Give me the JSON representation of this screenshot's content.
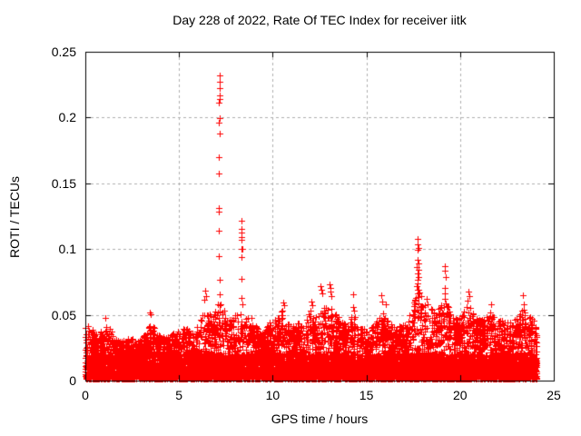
{
  "page": {
    "background": "#ffffff"
  },
  "chart_data": {
    "type": "scatter",
    "title": "Day 228 of 2022, Rate Of TEC Index for receiver iitk",
    "xlabel": "GPS time / hours",
    "ylabel": "ROTI / TECUs",
    "xlim": [
      0,
      25
    ],
    "ylim": [
      0,
      0.25
    ],
    "x_ticks": [
      0,
      5,
      10,
      15,
      20,
      25
    ],
    "x_tick_labels": [
      "0",
      "5",
      "10",
      "15",
      "20",
      "25"
    ],
    "y_ticks": [
      0,
      0.05,
      0.1,
      0.15,
      0.2,
      0.25
    ],
    "y_tick_labels": [
      "0",
      "0.05",
      "0.1",
      "0.15",
      "0.2",
      "0.25"
    ],
    "grid": true,
    "grid_style": "dashed",
    "grid_color": "#b0b0b0",
    "axis_color": "#000000",
    "marker": "+",
    "marker_color": "#ff0000",
    "legend": "none",
    "series": {
      "name": "ROTI",
      "coverage_hours": [
        0,
        24.1
      ],
      "dense_band_tecu": [
        0.001,
        0.03
      ],
      "envelope": [
        [
          0.0,
          0.044
        ],
        [
          0.3,
          0.04
        ],
        [
          0.7,
          0.034
        ],
        [
          1.0,
          0.042
        ],
        [
          1.3,
          0.04
        ],
        [
          1.6,
          0.032
        ],
        [
          2.0,
          0.03
        ],
        [
          2.4,
          0.033
        ],
        [
          2.8,
          0.03
        ],
        [
          3.2,
          0.036
        ],
        [
          3.5,
          0.048
        ],
        [
          3.8,
          0.036
        ],
        [
          4.2,
          0.033
        ],
        [
          4.6,
          0.036
        ],
        [
          5.0,
          0.038
        ],
        [
          5.4,
          0.04
        ],
        [
          5.8,
          0.036
        ],
        [
          6.1,
          0.046
        ],
        [
          6.4,
          0.058
        ],
        [
          6.7,
          0.05
        ],
        [
          7.0,
          0.056
        ],
        [
          7.2,
          0.062
        ],
        [
          7.45,
          0.056
        ],
        [
          7.7,
          0.048
        ],
        [
          8.0,
          0.05
        ],
        [
          8.3,
          0.058
        ],
        [
          8.6,
          0.052
        ],
        [
          8.9,
          0.048
        ],
        [
          9.2,
          0.04
        ],
        [
          9.5,
          0.036
        ],
        [
          9.8,
          0.044
        ],
        [
          10.1,
          0.046
        ],
        [
          10.5,
          0.056
        ],
        [
          10.8,
          0.044
        ],
        [
          11.1,
          0.042
        ],
        [
          11.4,
          0.046
        ],
        [
          11.7,
          0.044
        ],
        [
          12.0,
          0.054
        ],
        [
          12.3,
          0.048
        ],
        [
          12.6,
          0.06
        ],
        [
          12.9,
          0.054
        ],
        [
          13.1,
          0.06
        ],
        [
          13.4,
          0.052
        ],
        [
          13.7,
          0.046
        ],
        [
          14.0,
          0.044
        ],
        [
          14.3,
          0.054
        ],
        [
          14.6,
          0.04
        ],
        [
          15.0,
          0.04
        ],
        [
          15.4,
          0.044
        ],
        [
          15.8,
          0.054
        ],
        [
          16.1,
          0.048
        ],
        [
          16.4,
          0.042
        ],
        [
          16.7,
          0.04
        ],
        [
          17.0,
          0.046
        ],
        [
          17.3,
          0.052
        ],
        [
          17.6,
          0.062
        ],
        [
          17.8,
          0.072
        ],
        [
          18.0,
          0.064
        ],
        [
          18.3,
          0.058
        ],
        [
          18.6,
          0.052
        ],
        [
          18.9,
          0.056
        ],
        [
          19.2,
          0.062
        ],
        [
          19.5,
          0.054
        ],
        [
          19.8,
          0.05
        ],
        [
          20.1,
          0.052
        ],
        [
          20.4,
          0.058
        ],
        [
          20.7,
          0.052
        ],
        [
          21.0,
          0.046
        ],
        [
          21.3,
          0.048
        ],
        [
          21.6,
          0.054
        ],
        [
          21.9,
          0.046
        ],
        [
          22.2,
          0.046
        ],
        [
          22.5,
          0.05
        ],
        [
          22.8,
          0.046
        ],
        [
          23.1,
          0.048
        ],
        [
          23.4,
          0.056
        ],
        [
          23.7,
          0.05
        ],
        [
          24.0,
          0.048
        ],
        [
          24.1,
          0.038
        ]
      ],
      "spike_points": [
        [
          7.15,
          0.2318
        ],
        [
          7.16,
          0.2272
        ],
        [
          7.15,
          0.2226
        ],
        [
          7.17,
          0.2169
        ],
        [
          7.15,
          0.2141
        ],
        [
          7.13,
          0.2115
        ],
        [
          7.15,
          0.1996
        ],
        [
          7.13,
          0.196
        ],
        [
          7.18,
          0.188
        ],
        [
          7.14,
          0.1696
        ],
        [
          7.14,
          0.1574
        ],
        [
          7.14,
          0.131
        ],
        [
          7.14,
          0.1287
        ],
        [
          7.13,
          0.114
        ],
        [
          7.13,
          0.0948
        ],
        [
          7.15,
          0.0769
        ],
        [
          7.15,
          0.0654
        ],
        [
          8.33,
          0.1213
        ],
        [
          8.33,
          0.1155
        ],
        [
          8.34,
          0.1126
        ],
        [
          8.33,
          0.1093
        ],
        [
          8.34,
          0.1068
        ],
        [
          8.36,
          0.1001
        ],
        [
          8.31,
          0.1001
        ],
        [
          8.33,
          0.0937
        ],
        [
          8.31,
          0.0776
        ],
        [
          8.35,
          0.0626
        ],
        [
          8.37,
          0.058
        ],
        [
          17.75,
          0.108
        ],
        [
          17.73,
          0.1035
        ],
        [
          17.77,
          0.101
        ],
        [
          17.75,
          0.0995
        ],
        [
          17.72,
          0.092
        ],
        [
          17.78,
          0.089
        ],
        [
          17.7,
          0.0865
        ],
        [
          17.76,
          0.084
        ],
        [
          17.73,
          0.0815
        ],
        [
          17.79,
          0.079
        ],
        [
          17.71,
          0.0765
        ],
        [
          17.75,
          0.074
        ],
        [
          17.68,
          0.0715
        ],
        [
          17.8,
          0.069
        ],
        [
          17.73,
          0.066
        ],
        [
          17.77,
          0.0635
        ],
        [
          19.2,
          0.0868
        ],
        [
          19.18,
          0.0833
        ],
        [
          19.22,
          0.0787
        ],
        [
          19.19,
          0.0706
        ],
        [
          19.21,
          0.0661
        ],
        [
          19.2,
          0.0625
        ],
        [
          19.23,
          0.059
        ],
        [
          1.08,
          0.0477
        ],
        [
          3.45,
          0.052
        ],
        [
          3.5,
          0.0505
        ],
        [
          6.4,
          0.0684
        ],
        [
          6.45,
          0.064
        ],
        [
          6.35,
          0.0615
        ],
        [
          10.55,
          0.0596
        ],
        [
          10.6,
          0.057
        ],
        [
          12.05,
          0.06
        ],
        [
          12.1,
          0.0575
        ],
        [
          12.55,
          0.0718
        ],
        [
          12.6,
          0.069
        ],
        [
          12.65,
          0.066
        ],
        [
          13.05,
          0.073
        ],
        [
          13.1,
          0.0705
        ],
        [
          13.08,
          0.0675
        ],
        [
          13.15,
          0.0645
        ],
        [
          14.28,
          0.0654
        ],
        [
          14.3,
          0.056
        ],
        [
          14.33,
          0.0535
        ],
        [
          15.78,
          0.0649
        ],
        [
          15.82,
          0.06
        ],
        [
          16.05,
          0.058
        ],
        [
          18.2,
          0.062
        ],
        [
          18.25,
          0.058
        ],
        [
          20.45,
          0.068
        ],
        [
          20.5,
          0.064
        ],
        [
          20.42,
          0.0605
        ],
        [
          21.65,
          0.058
        ],
        [
          23.37,
          0.0649
        ],
        [
          23.4,
          0.058
        ],
        [
          23.42,
          0.054
        ]
      ]
    }
  }
}
